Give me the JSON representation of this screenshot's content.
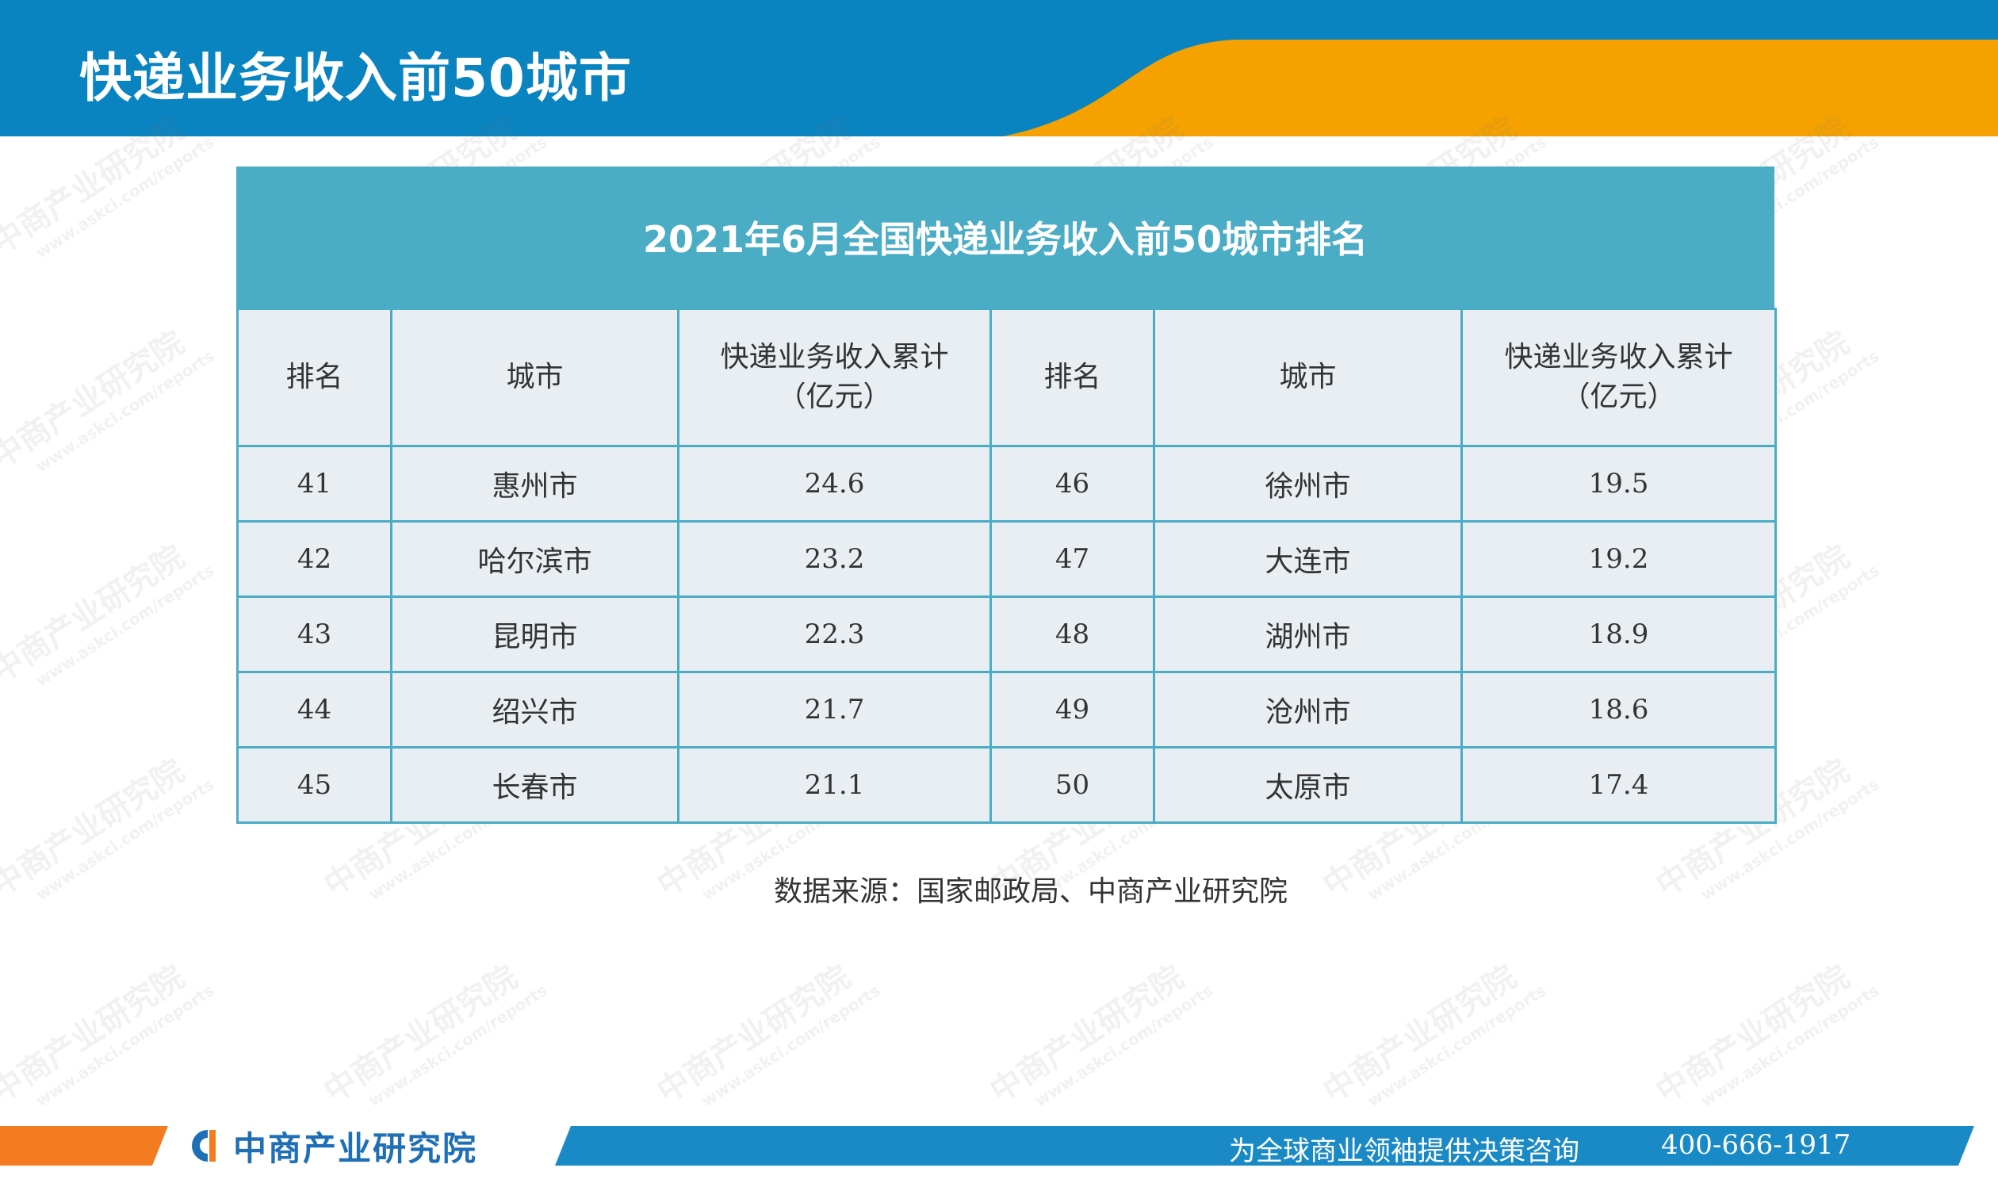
{
  "header": {
    "title": "快递业务收入前50城市",
    "colors": {
      "band": "#0a84c0",
      "accent": "#f5a200"
    }
  },
  "watermark": {
    "name": "中商产业研究院",
    "url": "www.askci.com/reports"
  },
  "table": {
    "caption": "2021年6月全国快递业务收入前50城市排名",
    "columns": {
      "rank": "排名",
      "city": "城市",
      "revenue_line1": "快递业务收入累计",
      "revenue_line2": "（亿元）"
    },
    "rows": [
      {
        "rank_l": "41",
        "city_l": "惠州市",
        "rev_l": "24.6",
        "rank_r": "46",
        "city_r": "徐州市",
        "rev_r": "19.5"
      },
      {
        "rank_l": "42",
        "city_l": "哈尔滨市",
        "rev_l": "23.2",
        "rank_r": "47",
        "city_r": "大连市",
        "rev_r": "19.2"
      },
      {
        "rank_l": "43",
        "city_l": "昆明市",
        "rev_l": "22.3",
        "rank_r": "48",
        "city_r": "湖州市",
        "rev_r": "18.9"
      },
      {
        "rank_l": "44",
        "city_l": "绍兴市",
        "rev_l": "21.7",
        "rank_r": "49",
        "city_r": "沧州市",
        "rev_r": "18.6"
      },
      {
        "rank_l": "45",
        "city_l": "长春市",
        "rev_l": "21.1",
        "rank_r": "50",
        "city_r": "太原市",
        "rev_r": "17.4"
      }
    ],
    "colors": {
      "header_bg": "#4bacc6",
      "cell_bg": "#e8eef2"
    }
  },
  "source": "数据来源：国家邮政局、中商产业研究院",
  "footer": {
    "logo_text": "中商产业研究院",
    "slogan": "为全球商业领袖提供决策咨询",
    "phone": "400-666-1917",
    "colors": {
      "left": "#f47c20",
      "bar": "#1a8ac6",
      "logo": "#1e6fb5"
    }
  }
}
